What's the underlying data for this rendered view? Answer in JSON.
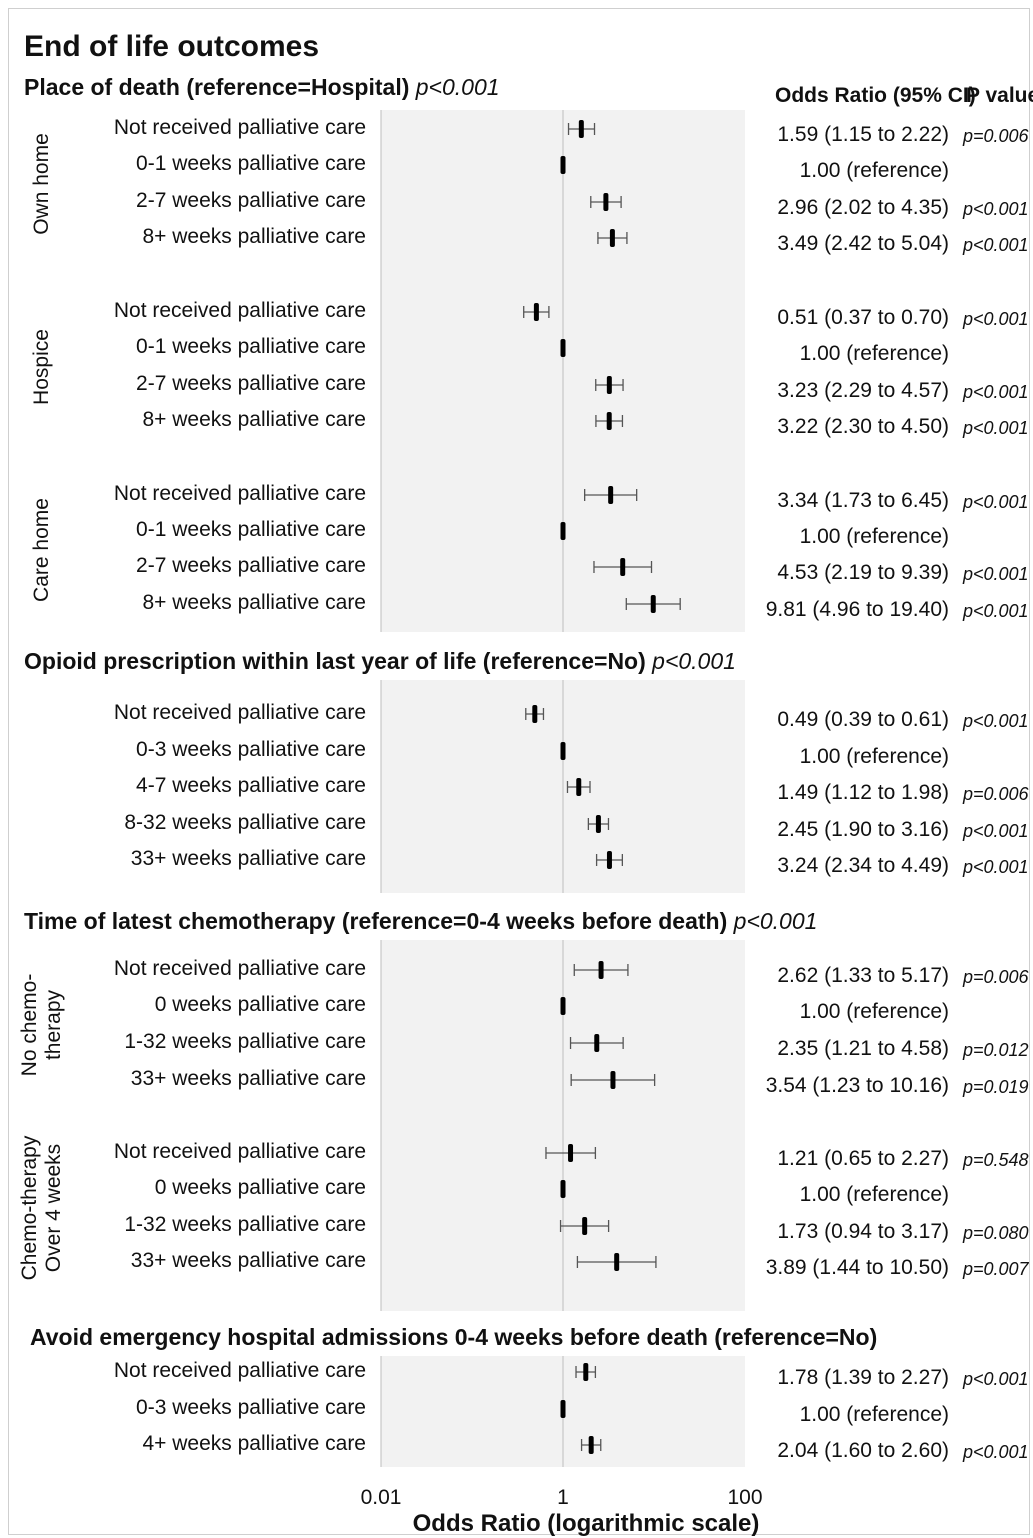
{
  "chart_data": {
    "type": "forest",
    "title": "End of life outcomes",
    "xlabel": "Odds Ratio (logarithmic scale)",
    "x_scale": "log",
    "xlim": [
      0.01,
      100
    ],
    "xticks": [
      "0.01",
      "1",
      "100"
    ],
    "column_headers": {
      "or": "Odds Ratio (95% CI)",
      "p": "P value"
    },
    "sections": [
      {
        "title": "Place of death (reference=Hospital)",
        "p": "p<0.001",
        "groups": [
          {
            "label": "Own home",
            "rows": [
              {
                "label": "Not received palliative care",
                "or": 1.59,
                "lo": 1.15,
                "hi": 2.22,
                "or_text": "1.59 (1.15 to 2.22)",
                "p": "p=0.006"
              },
              {
                "label": "0-1 weeks palliative care",
                "or": 1.0,
                "lo": 1.0,
                "hi": 1.0,
                "or_text": "1.00 (reference)",
                "p": ""
              },
              {
                "label": "2-7 weeks palliative care",
                "or": 2.96,
                "lo": 2.02,
                "hi": 4.35,
                "or_text": "2.96 (2.02 to 4.35)",
                "p": "p<0.001"
              },
              {
                "label": "8+ weeks palliative care",
                "or": 3.49,
                "lo": 2.42,
                "hi": 5.04,
                "or_text": "3.49 (2.42 to 5.04)",
                "p": "p<0.001"
              }
            ]
          },
          {
            "label": "Hospice",
            "rows": [
              {
                "label": "Not received palliative care",
                "or": 0.51,
                "lo": 0.37,
                "hi": 0.7,
                "or_text": "0.51 (0.37 to 0.70)",
                "p": "p<0.001"
              },
              {
                "label": "0-1 weeks palliative care",
                "or": 1.0,
                "lo": 1.0,
                "hi": 1.0,
                "or_text": "1.00 (reference)",
                "p": ""
              },
              {
                "label": "2-7 weeks palliative care",
                "or": 3.23,
                "lo": 2.29,
                "hi": 4.57,
                "or_text": "3.23 (2.29 to 4.57)",
                "p": "p<0.001"
              },
              {
                "label": "8+ weeks palliative care",
                "or": 3.22,
                "lo": 2.3,
                "hi": 4.5,
                "or_text": "3.22 (2.30 to 4.50)",
                "p": "p<0.001"
              }
            ]
          },
          {
            "label": "Care home",
            "rows": [
              {
                "label": "Not received palliative care",
                "or": 3.34,
                "lo": 1.73,
                "hi": 6.45,
                "or_text": "3.34 (1.73 to 6.45)",
                "p": "p<0.001"
              },
              {
                "label": "0-1 weeks palliative care",
                "or": 1.0,
                "lo": 1.0,
                "hi": 1.0,
                "or_text": "1.00 (reference)",
                "p": ""
              },
              {
                "label": "2-7 weeks palliative care",
                "or": 4.53,
                "lo": 2.19,
                "hi": 9.39,
                "or_text": "4.53 (2.19 to 9.39)",
                "p": "p<0.001"
              },
              {
                "label": "8+ weeks palliative care",
                "or": 9.81,
                "lo": 4.96,
                "hi": 19.4,
                "or_text": "9.81 (4.96 to 19.40)",
                "p": "p<0.001"
              }
            ]
          }
        ]
      },
      {
        "title": "Opioid prescription within last year of life (reference=No)",
        "p": "p<0.001",
        "groups": [
          {
            "label": "",
            "rows": [
              {
                "label": "Not received palliative care",
                "or": 0.49,
                "lo": 0.39,
                "hi": 0.61,
                "or_text": "0.49 (0.39 to 0.61)",
                "p": "p<0.001"
              },
              {
                "label": "0-3 weeks palliative care",
                "or": 1.0,
                "lo": 1.0,
                "hi": 1.0,
                "or_text": "1.00 (reference)",
                "p": ""
              },
              {
                "label": "4-7 weeks palliative care",
                "or": 1.49,
                "lo": 1.12,
                "hi": 1.98,
                "or_text": "1.49 (1.12 to 1.98)",
                "p": "p=0.006"
              },
              {
                "label": "8-32 weeks palliative care",
                "or": 2.45,
                "lo": 1.9,
                "hi": 3.16,
                "or_text": "2.45 (1.90 to 3.16)",
                "p": "p<0.001"
              },
              {
                "label": "33+ weeks palliative care",
                "or": 3.24,
                "lo": 2.34,
                "hi": 4.49,
                "or_text": "3.24 (2.34 to 4.49)",
                "p": "p<0.001"
              }
            ]
          }
        ]
      },
      {
        "title": "Time of latest chemotherapy (reference=0-4 weeks before death)",
        "p": "p<0.001",
        "groups": [
          {
            "label": "No chemo-therapy",
            "label_lines": [
              "No chemo-",
              "therapy"
            ],
            "rows": [
              {
                "label": "Not received palliative care",
                "or": 2.62,
                "lo": 1.33,
                "hi": 5.17,
                "or_text": "2.62 (1.33 to 5.17)",
                "p": "p=0.006"
              },
              {
                "label": "0 weeks palliative care",
                "or": 1.0,
                "lo": 1.0,
                "hi": 1.0,
                "or_text": "1.00 (reference)",
                "p": ""
              },
              {
                "label": "1-32 weeks palliative care",
                "or": 2.35,
                "lo": 1.21,
                "hi": 4.58,
                "or_text": "2.35 (1.21 to 4.58)",
                "p": "p=0.012"
              },
              {
                "label": "33+ weeks palliative care",
                "or": 3.54,
                "lo": 1.23,
                "hi": 10.16,
                "or_text": "3.54 (1.23 to 10.16)",
                "p": "p=0.019"
              }
            ]
          },
          {
            "label": "Chemo-therapy Over 4 weeks",
            "label_lines": [
              "Chemo-therapy",
              "Over 4 weeks"
            ],
            "rows": [
              {
                "label": "Not received palliative care",
                "or": 1.21,
                "lo": 0.65,
                "hi": 2.27,
                "or_text": "1.21 (0.65 to 2.27)",
                "p": "p=0.548"
              },
              {
                "label": "0 weeks palliative care",
                "or": 1.0,
                "lo": 1.0,
                "hi": 1.0,
                "or_text": "1.00 (reference)",
                "p": ""
              },
              {
                "label": "1-32 weeks palliative care",
                "or": 1.73,
                "lo": 0.94,
                "hi": 3.17,
                "or_text": "1.73 (0.94 to 3.17)",
                "p": "p=0.080"
              },
              {
                "label": "33+ weeks palliative care",
                "or": 3.89,
                "lo": 1.44,
                "hi": 10.5,
                "or_text": "3.89 (1.44 to 10.50)",
                "p": "p=0.007"
              }
            ]
          }
        ]
      },
      {
        "title": "Avoid emergency hospital admissions 0-4 weeks before death (reference=No)",
        "p": "",
        "groups": [
          {
            "label": "",
            "rows": [
              {
                "label": "Not received palliative care",
                "or": 1.78,
                "lo": 1.39,
                "hi": 2.27,
                "or_text": "1.78 (1.39 to 2.27)",
                "p": "p<0.001"
              },
              {
                "label": "0-3 weeks palliative care",
                "or": 1.0,
                "lo": 1.0,
                "hi": 1.0,
                "or_text": "1.00 (reference)",
                "p": ""
              },
              {
                "label": "4+ weeks palliative care",
                "or": 2.04,
                "lo": 1.6,
                "hi": 2.6,
                "or_text": "2.04 (1.60 to 2.60)",
                "p": "p<0.001"
              }
            ]
          }
        ]
      }
    ]
  }
}
